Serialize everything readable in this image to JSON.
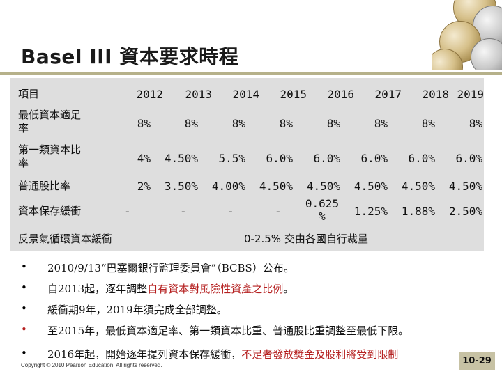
{
  "title": "Basel III 資本要求時程",
  "table": {
    "header_label": "項目",
    "years": [
      "2012",
      "2013",
      "2014",
      "2015",
      "2016",
      "2017",
      "2018",
      "2019"
    ],
    "rows": [
      {
        "label_line1": "最低資本適足",
        "label_line2": "率",
        "values": [
          "8%",
          "8%",
          "8%",
          "8%",
          "8%",
          "8%",
          "8%",
          "8%"
        ]
      },
      {
        "label_line1": "第一類資本比",
        "label_line2": "率",
        "values": [
          "4%",
          "4.50%",
          "5.5%",
          "6.0%",
          "6.0%",
          "6.0%",
          "6.0%",
          "6.0%"
        ]
      },
      {
        "label_line1": "普通股比率",
        "label_line2": "",
        "values": [
          "2%",
          "3.50%",
          "4.00%",
          "4.50%",
          "4.50%",
          "4.50%",
          "4.50%",
          "4.50%"
        ]
      },
      {
        "label_line1": "資本保存緩衝",
        "label_line2": "",
        "values": [
          "-",
          "-",
          "-",
          "-",
          "0.625 %",
          "1.25%",
          "1.88%",
          "2.50%"
        ]
      }
    ],
    "last_row": {
      "label": "反景氣循環資本緩衝",
      "note": "0-2.5% 交由各國自行裁量"
    }
  },
  "bullets": {
    "dot": "•",
    "b1": "2010/9/13“巴塞爾銀行監理委員會”（BCBS）公布。",
    "b2_pre": "自2013起，逐年調整",
    "b2_red": "自有資本對風險性資產之比例",
    "b2_post": "。",
    "b3": "緩衝期9年，2019年須完成全部調整。",
    "b4": "至2015年，最低資本適足率、第一類資本比重、普通股比重調整至最低下限。",
    "b5_pre": "2016年起，開始逐年提列資本保存緩衝，",
    "b5_red": "不足者發放獎金及股利將受到限制"
  },
  "footer": {
    "copyright": "Copyright © 2010 Pearson Education. All rights reserved.",
    "page": "10-29"
  }
}
